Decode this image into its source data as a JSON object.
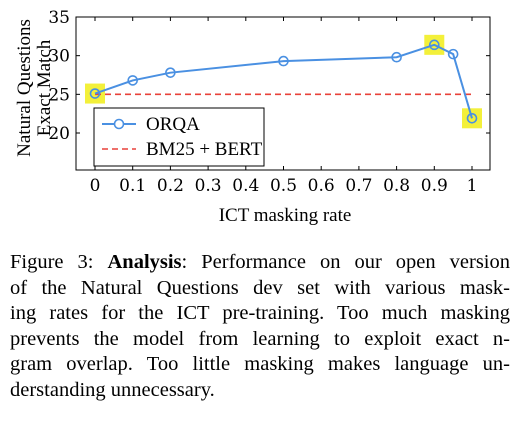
{
  "chart_data": {
    "type": "line",
    "ylabel_lines": [
      "Natural Questions",
      "Exact Match"
    ],
    "xlabel": "ICT masking rate",
    "x_ticks": [
      "0",
      "0.1",
      "0.2",
      "0.3",
      "0.4",
      "0.5",
      "0.6",
      "0.7",
      "0.8",
      "0.9",
      "1"
    ],
    "y_ticks": [
      "20",
      "25",
      "30",
      "35"
    ],
    "xlim": [
      0,
      1
    ],
    "ylim": [
      20,
      35
    ],
    "grid": false,
    "legend_placement": "bottom-left",
    "series": [
      {
        "name": "ORQA",
        "style": "solid line with circle markers",
        "color": "#4a90e2",
        "x": [
          0,
          0.1,
          0.2,
          0.5,
          0.8,
          0.9,
          0.95,
          1
        ],
        "y": [
          25.1,
          26.8,
          27.8,
          29.3,
          29.8,
          31.4,
          30.2,
          21.9
        ]
      },
      {
        "name": "BM25 + BERT",
        "style": "dashed horizontal line",
        "color": "#e8413a",
        "x": [
          0,
          1
        ],
        "y": [
          25.0,
          25.0
        ]
      }
    ],
    "highlighted_points": {
      "color": "#f3f03a",
      "x": [
        0,
        0.9,
        1
      ]
    }
  },
  "caption": {
    "label": "Figure 3:",
    "bold": "Analysis",
    "lines": [
      ": Performance on our open version",
      "of the Natural Questions dev set with various mask-",
      "ing rates for the ICT pre-training.  Too much masking",
      "prevents the model from learning to exploit exact n-",
      "gram overlap.  Too little masking makes language un-",
      "derstanding unnecessary."
    ]
  }
}
